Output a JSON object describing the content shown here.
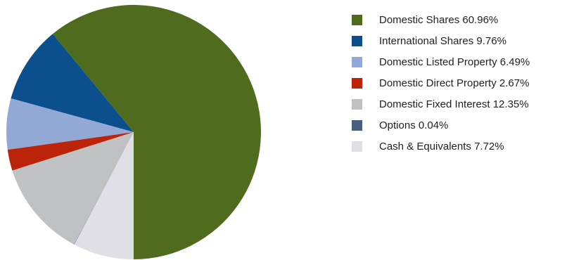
{
  "chart_data": {
    "type": "pie",
    "start_angle": "6 o'clock",
    "direction": "counterclockwise",
    "legend_position": "right",
    "series": [
      {
        "name": "Domestic Shares 60.96%",
        "value": 60.96,
        "color": "#4E6B1E"
      },
      {
        "name": "International Shares 9.76%",
        "value": 9.76,
        "color": "#0B4F8C"
      },
      {
        "name": "Domestic Listed Property 6.49%",
        "value": 6.49,
        "color": "#91A9D4"
      },
      {
        "name": "Domestic Direct Property 2.67%",
        "value": 2.67,
        "color": "#BB2408"
      },
      {
        "name": "Domestic Fixed Interest 12.35%",
        "value": 12.35,
        "color": "#C0C1C3"
      },
      {
        "name": "Options 0.04%",
        "value": 0.04,
        "color": "#44627F"
      },
      {
        "name": "Cash & Equivalents 7.72%",
        "value": 7.72,
        "color": "#DFDFE5"
      }
    ]
  }
}
